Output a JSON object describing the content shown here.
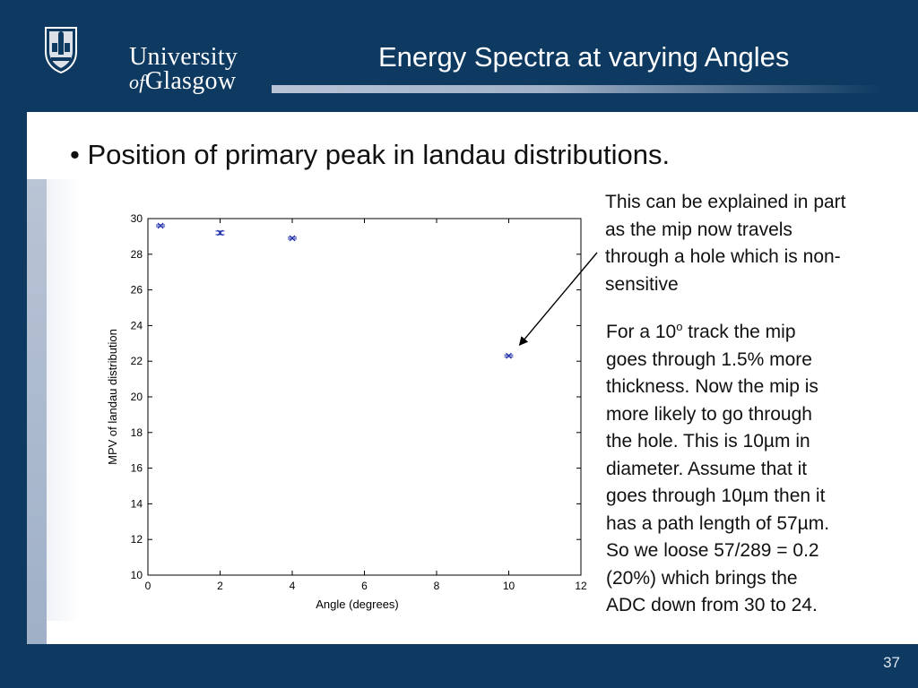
{
  "header": {
    "logo": {
      "line1": "University",
      "line2_of": "of",
      "line2_rest": "Glasgow"
    },
    "title": "Energy Spectra at varying Angles"
  },
  "bullet": "• Position of primary peak in landau distributions.",
  "annotation_text": {
    "part1": [
      "This can be explained in part",
      "as the mip now travels",
      "through a hole which is non-",
      "sensitive"
    ],
    "part2_line1_a": "For a 10",
    "part2_line1_sup": "o",
    "part2_line1_b": " track the mip",
    "part2_lines": [
      "goes through 1.5% more",
      "thickness. Now the mip is",
      "more likely to go through",
      "the hole. This is 10µm in",
      "diameter. Assume that it",
      "goes through 10µm then it",
      "has a path length of 57µm.",
      "So we loose 57/289 = 0.2",
      "(20%) which brings the",
      "ADC down from 30 to 24."
    ]
  },
  "page_number": "37",
  "colors": {
    "background": "#0e3a62",
    "marker": "#1f2fa8"
  },
  "chart_data": {
    "type": "scatter",
    "xlabel": "Angle (degrees)",
    "ylabel": "MPV of landau distribution",
    "xlim": [
      0,
      12
    ],
    "ylim": [
      10,
      30
    ],
    "xticks": [
      0,
      2,
      4,
      6,
      8,
      10,
      12
    ],
    "yticks": [
      10,
      12,
      14,
      16,
      18,
      20,
      22,
      24,
      26,
      28,
      30
    ],
    "grid": false,
    "points": [
      {
        "x": 0.35,
        "y": 29.6,
        "err": 0.05
      },
      {
        "x": 2,
        "y": 29.2,
        "err": 0.1
      },
      {
        "x": 4,
        "y": 28.9,
        "err": 0.05
      },
      {
        "x": 10,
        "y": 22.3,
        "err": 0.05
      }
    ]
  }
}
